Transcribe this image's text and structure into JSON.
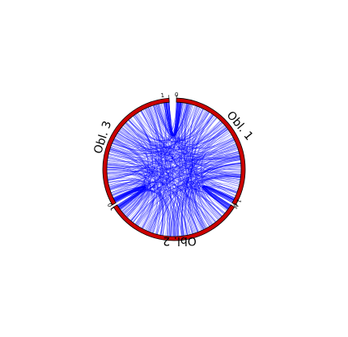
{
  "chord_diagram": {
    "sectors": [
      {
        "id": "obl1",
        "label": "Obl. 1",
        "tick_start": "0",
        "tick_end": "1",
        "fill": "#cc0000",
        "stroke": "#000000"
      },
      {
        "id": "obl2",
        "label": "Obl. 2",
        "tick_start": "0",
        "tick_end": "1",
        "fill": "#cc0000",
        "stroke": "#000000"
      },
      {
        "id": "obl3",
        "label": "Obl. 3",
        "tick_start": "0",
        "tick_end": "1",
        "fill": "#cc0000",
        "stroke": "#000000"
      }
    ],
    "link_color": "#0000ff",
    "links_per_pair": {
      "obl1-obl2": 170,
      "obl2-obl3": 170,
      "obl3-obl1": 170
    },
    "link_position_range": [
      0,
      1
    ]
  }
}
